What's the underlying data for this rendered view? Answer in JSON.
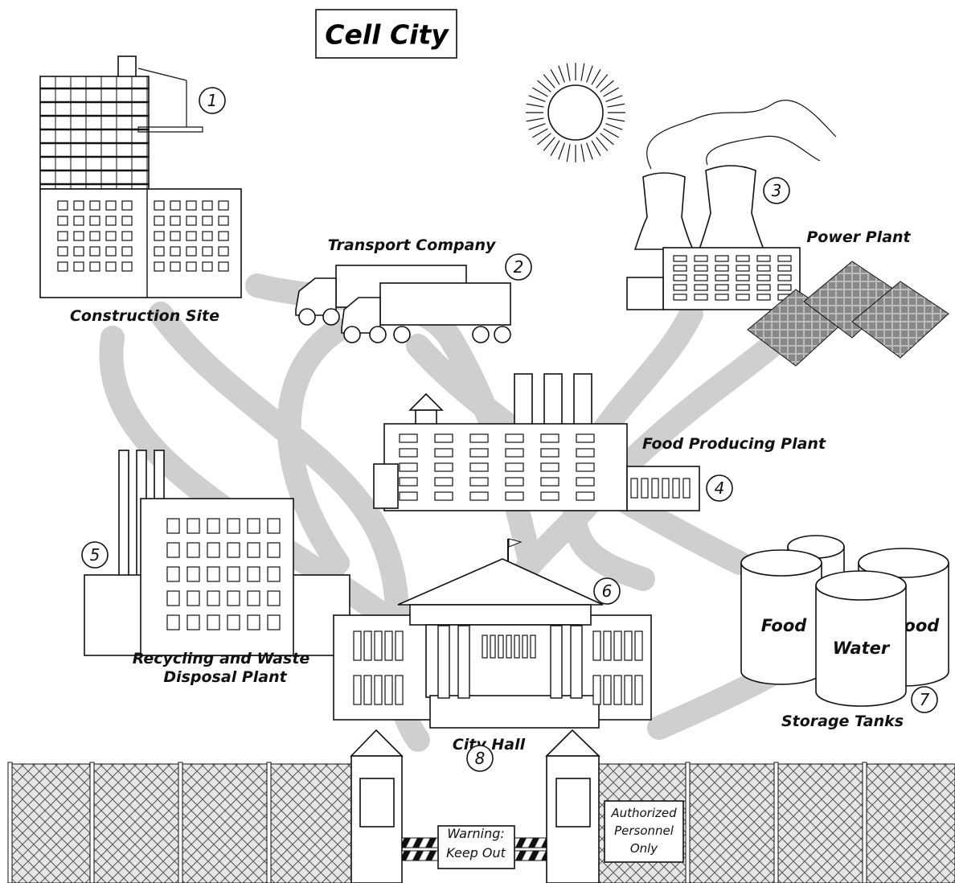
{
  "title": "Cell City",
  "locations": [
    {
      "number": 1,
      "label": [
        "Construction Site"
      ]
    },
    {
      "number": 2,
      "label": [
        "Transport Company"
      ]
    },
    {
      "number": 3,
      "label": [
        "Power Plant"
      ]
    },
    {
      "number": 4,
      "label": [
        "Food Producing Plant"
      ]
    },
    {
      "number": 5,
      "label": [
        "Recycling and Waste",
        "Disposal Plant"
      ]
    },
    {
      "number": 6,
      "label": [
        "City Hall"
      ]
    },
    {
      "number": 7,
      "label": [
        "Storage Tanks"
      ]
    },
    {
      "number": 8,
      "label": []
    }
  ],
  "tanks": [
    "Food",
    "Food",
    "Water"
  ],
  "signs": {
    "warning": [
      "Warning:",
      "Keep Out"
    ],
    "authorized": [
      "Authorized",
      "Personnel",
      "Only"
    ]
  }
}
